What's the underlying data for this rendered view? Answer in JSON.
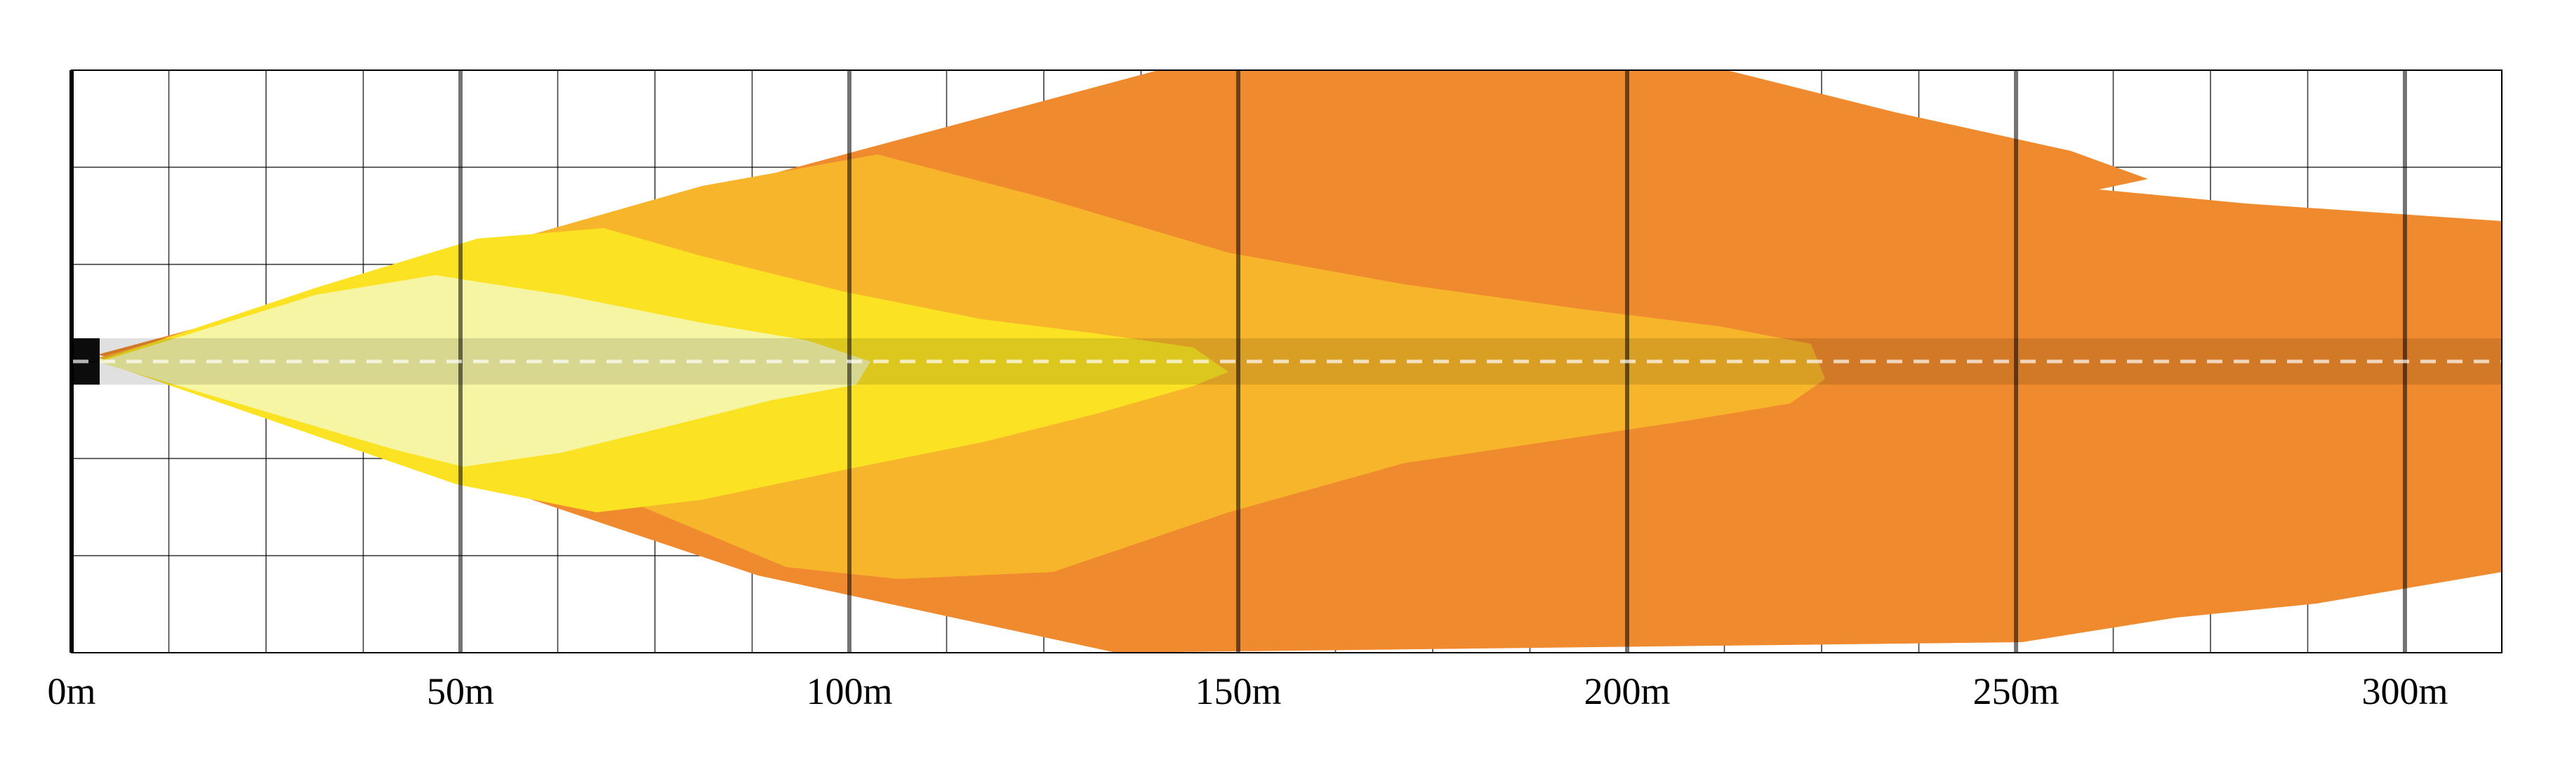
{
  "axis": {
    "unit": "m",
    "tick_labels": [
      "0m",
      "50m",
      "100m",
      "150m",
      "200m",
      "250m",
      "300m"
    ],
    "range_m": [
      0,
      312.5
    ],
    "major_step_m": 50,
    "minor_step_m": 12.5,
    "grid_rows": 6
  },
  "colors": {
    "background": "#ffffff",
    "grid_line": "#000000",
    "beam_axis_band": "#000000",
    "centerline_dash": "#ffffff"
  },
  "beam_zones": [
    {
      "reach_m": 312.5,
      "color": "#f08a2e"
    },
    {
      "reach_m": 226,
      "color": "#f7b52b"
    },
    {
      "reach_m": 149,
      "color": "#fbe324"
    },
    {
      "reach_m": 103,
      "color": "#f6f5a3"
    }
  ]
}
